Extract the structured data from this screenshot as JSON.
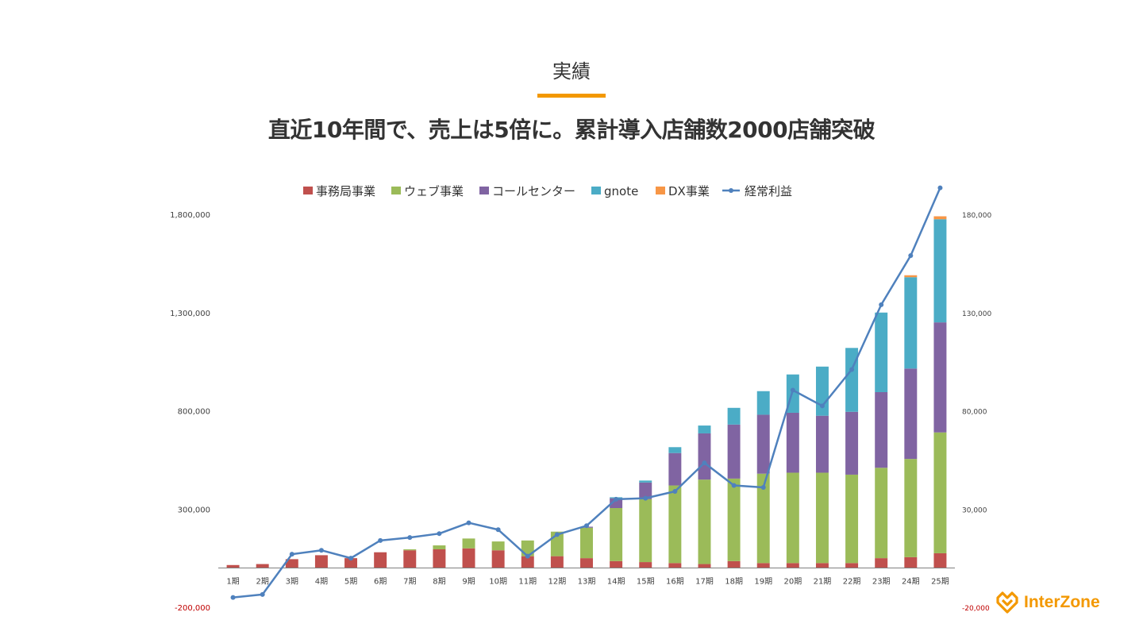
{
  "page": {
    "heading": "実績",
    "headline": "直近10年間で、売上は5倍に。累計導入店舗数2000店舗突破",
    "logo_text": "InterZone",
    "accent_color": "#f39800"
  },
  "chart_data": {
    "type": "bar",
    "stacked": true,
    "categories": [
      "1期",
      "2期",
      "3期",
      "4期",
      "5期",
      "6期",
      "7期",
      "8期",
      "9期",
      "10期",
      "11期",
      "12期",
      "13期",
      "14期",
      "15期",
      "16期",
      "17期",
      "18期",
      "19期",
      "20期",
      "21期",
      "22期",
      "23期",
      "24期",
      "25期"
    ],
    "y_left": {
      "ticks": [
        "1,800,000",
        "1,300,000",
        "800,000",
        "300,000",
        "-200,000"
      ],
      "tick_values": [
        1800000,
        1300000,
        800000,
        300000,
        -200000
      ],
      "range": [
        -200000,
        1800000
      ]
    },
    "y_right": {
      "ticks": [
        "180,000",
        "130,000",
        "80,000",
        "30,000",
        "-20,000"
      ],
      "tick_values": [
        180000,
        130000,
        80000,
        30000,
        -20000
      ],
      "range": [
        -20000,
        180000
      ]
    },
    "legend_position": "top",
    "series": [
      {
        "name": "事務局事業",
        "color": "#c0504d",
        "values": [
          15000,
          20000,
          45000,
          65000,
          50000,
          80000,
          90000,
          95000,
          100000,
          90000,
          60000,
          60000,
          50000,
          35000,
          30000,
          25000,
          20000,
          35000,
          25000,
          25000,
          25000,
          25000,
          50000,
          55000,
          75000
        ]
      },
      {
        "name": "ウェブ事業",
        "color": "#9bbb59",
        "values": [
          0,
          0,
          0,
          0,
          0,
          0,
          5000,
          20000,
          50000,
          45000,
          80000,
          125000,
          155000,
          270000,
          320000,
          395000,
          430000,
          420000,
          455000,
          460000,
          460000,
          450000,
          460000,
          500000,
          615000
        ]
      },
      {
        "name": "コールセンター",
        "color": "#8064a2",
        "values": [
          0,
          0,
          0,
          0,
          0,
          0,
          0,
          0,
          0,
          0,
          0,
          0,
          5000,
          50000,
          85000,
          165000,
          235000,
          275000,
          300000,
          305000,
          290000,
          320000,
          385000,
          460000,
          560000
        ]
      },
      {
        "name": "gnote",
        "color": "#4bacc6",
        "values": [
          0,
          0,
          0,
          0,
          0,
          0,
          0,
          0,
          0,
          0,
          0,
          0,
          0,
          5000,
          10000,
          30000,
          40000,
          85000,
          120000,
          195000,
          250000,
          325000,
          405000,
          465000,
          525000
        ]
      },
      {
        "name": "DX事業",
        "color": "#f79646",
        "values": [
          0,
          0,
          0,
          0,
          0,
          0,
          0,
          0,
          0,
          0,
          0,
          0,
          0,
          0,
          0,
          0,
          0,
          0,
          0,
          0,
          0,
          0,
          0,
          10000,
          15000
        ]
      }
    ],
    "line_series": {
      "name": "経常利益",
      "color": "#4f81bd",
      "axis": "right",
      "values": [
        -15000,
        -13500,
        7000,
        9000,
        5000,
        14000,
        15500,
        17500,
        23000,
        19500,
        6000,
        17000,
        21500,
        35000,
        35500,
        39000,
        53500,
        42000,
        41000,
        90500,
        82500,
        101000,
        134000,
        159000,
        193500
      ]
    }
  }
}
